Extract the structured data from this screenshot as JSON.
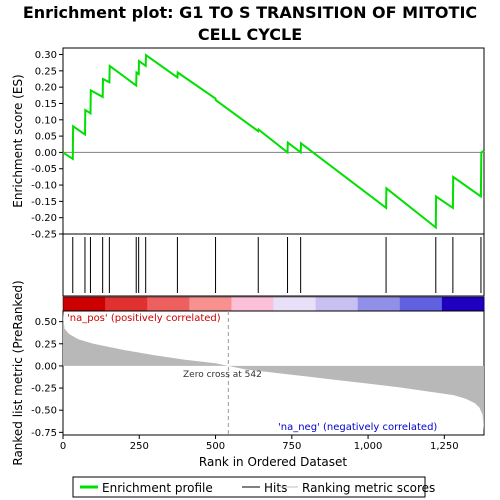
{
  "chart_data": {
    "type": "line",
    "title": "Enrichment plot: G1 TO S TRANSITION OF MITOTIC CELL CYCLE",
    "top_panel": {
      "ylabel": "Enrichment score (ES)",
      "ylim": [
        -0.25,
        0.32
      ],
      "yticks": [
        "0.30",
        "0.25",
        "0.20",
        "0.15",
        "0.10",
        "0.05",
        "0.00",
        "-0.05",
        "-0.10",
        "-0.15",
        "-0.20",
        "-0.25"
      ],
      "ytick_values": [
        0.3,
        0.25,
        0.2,
        0.15,
        0.1,
        0.05,
        0.0,
        -0.05,
        -0.1,
        -0.15,
        -0.2,
        -0.25
      ],
      "series": [
        {
          "name": "Enrichment profile",
          "color": "#00e000",
          "x": [
            0,
            32,
            33,
            72,
            73,
            90,
            91,
            130,
            131,
            152,
            153,
            240,
            241,
            248,
            249,
            271,
            272,
            375,
            376,
            500,
            501,
            640,
            641,
            736,
            737,
            779,
            780,
            1059,
            1060,
            1222,
            1223,
            1278,
            1279,
            1370,
            1371,
            1380
          ],
          "y": [
            0.0,
            -0.02,
            0.08,
            0.055,
            0.13,
            0.12,
            0.19,
            0.17,
            0.225,
            0.215,
            0.265,
            0.205,
            0.245,
            0.24,
            0.28,
            0.265,
            0.298,
            0.23,
            0.245,
            0.165,
            0.16,
            0.065,
            0.07,
            0.0,
            0.03,
            0.0,
            0.028,
            -0.17,
            -0.11,
            -0.23,
            -0.135,
            -0.17,
            -0.075,
            -0.135,
            0.0,
            0.005
          ]
        }
      ]
    },
    "hits": [
      32,
      72,
      90,
      130,
      152,
      240,
      248,
      271,
      375,
      500,
      640,
      736,
      779,
      1059,
      1222,
      1278,
      1370
    ],
    "bottom_panel": {
      "ylabel": "Ranked list metric (PreRanked)",
      "xlabel": "Rank in Ordered Dataset",
      "ylim": [
        -0.78,
        0.62
      ],
      "yticks": [
        "0.50",
        "0.25",
        "0.00",
        "-0.25",
        "-0.50",
        "-0.75"
      ],
      "ytick_values": [
        0.5,
        0.25,
        0.0,
        -0.25,
        -0.5,
        -0.75
      ],
      "xlim": [
        0,
        1380
      ],
      "xticks": [
        "0",
        "250",
        "500",
        "750",
        "1,000",
        "1,250"
      ],
      "xtick_values": [
        0,
        250,
        500,
        750,
        1000,
        1250
      ],
      "zero_cross": 542,
      "metric_points_x": [
        0,
        5,
        20,
        50,
        100,
        200,
        300,
        400,
        500,
        542,
        600,
        700,
        800,
        900,
        1000,
        1100,
        1200,
        1280,
        1320,
        1350,
        1365,
        1375,
        1380
      ],
      "metric_points_y": [
        0.6,
        0.42,
        0.36,
        0.3,
        0.25,
        0.18,
        0.12,
        0.07,
        0.03,
        0.0,
        -0.04,
        -0.08,
        -0.12,
        -0.16,
        -0.2,
        -0.24,
        -0.29,
        -0.33,
        -0.37,
        -0.42,
        -0.47,
        -0.55,
        -0.73
      ],
      "annotations": {
        "zero_cross_label": "Zero cross at 542",
        "pos_label": "'na_pos' (positively correlated)",
        "neg_label": "'na_neg' (negatively correlated)"
      }
    },
    "legend": [
      {
        "label": "Enrichment profile",
        "color": "#00e000"
      },
      {
        "label": "Hits",
        "color": "#000000"
      },
      {
        "label": "Ranking metric scores",
        "color": "#c0c0c0"
      }
    ],
    "colors": {
      "pos_label": "#cc0000",
      "neg_label": "#0000cc",
      "bar_colors": [
        "#cc0000",
        "#e03030",
        "#ee6060",
        "#f89090",
        "#fcc0d8",
        "#e8e0f8",
        "#c8c0f0",
        "#9090e8",
        "#6060e0",
        "#2000c0"
      ]
    }
  }
}
